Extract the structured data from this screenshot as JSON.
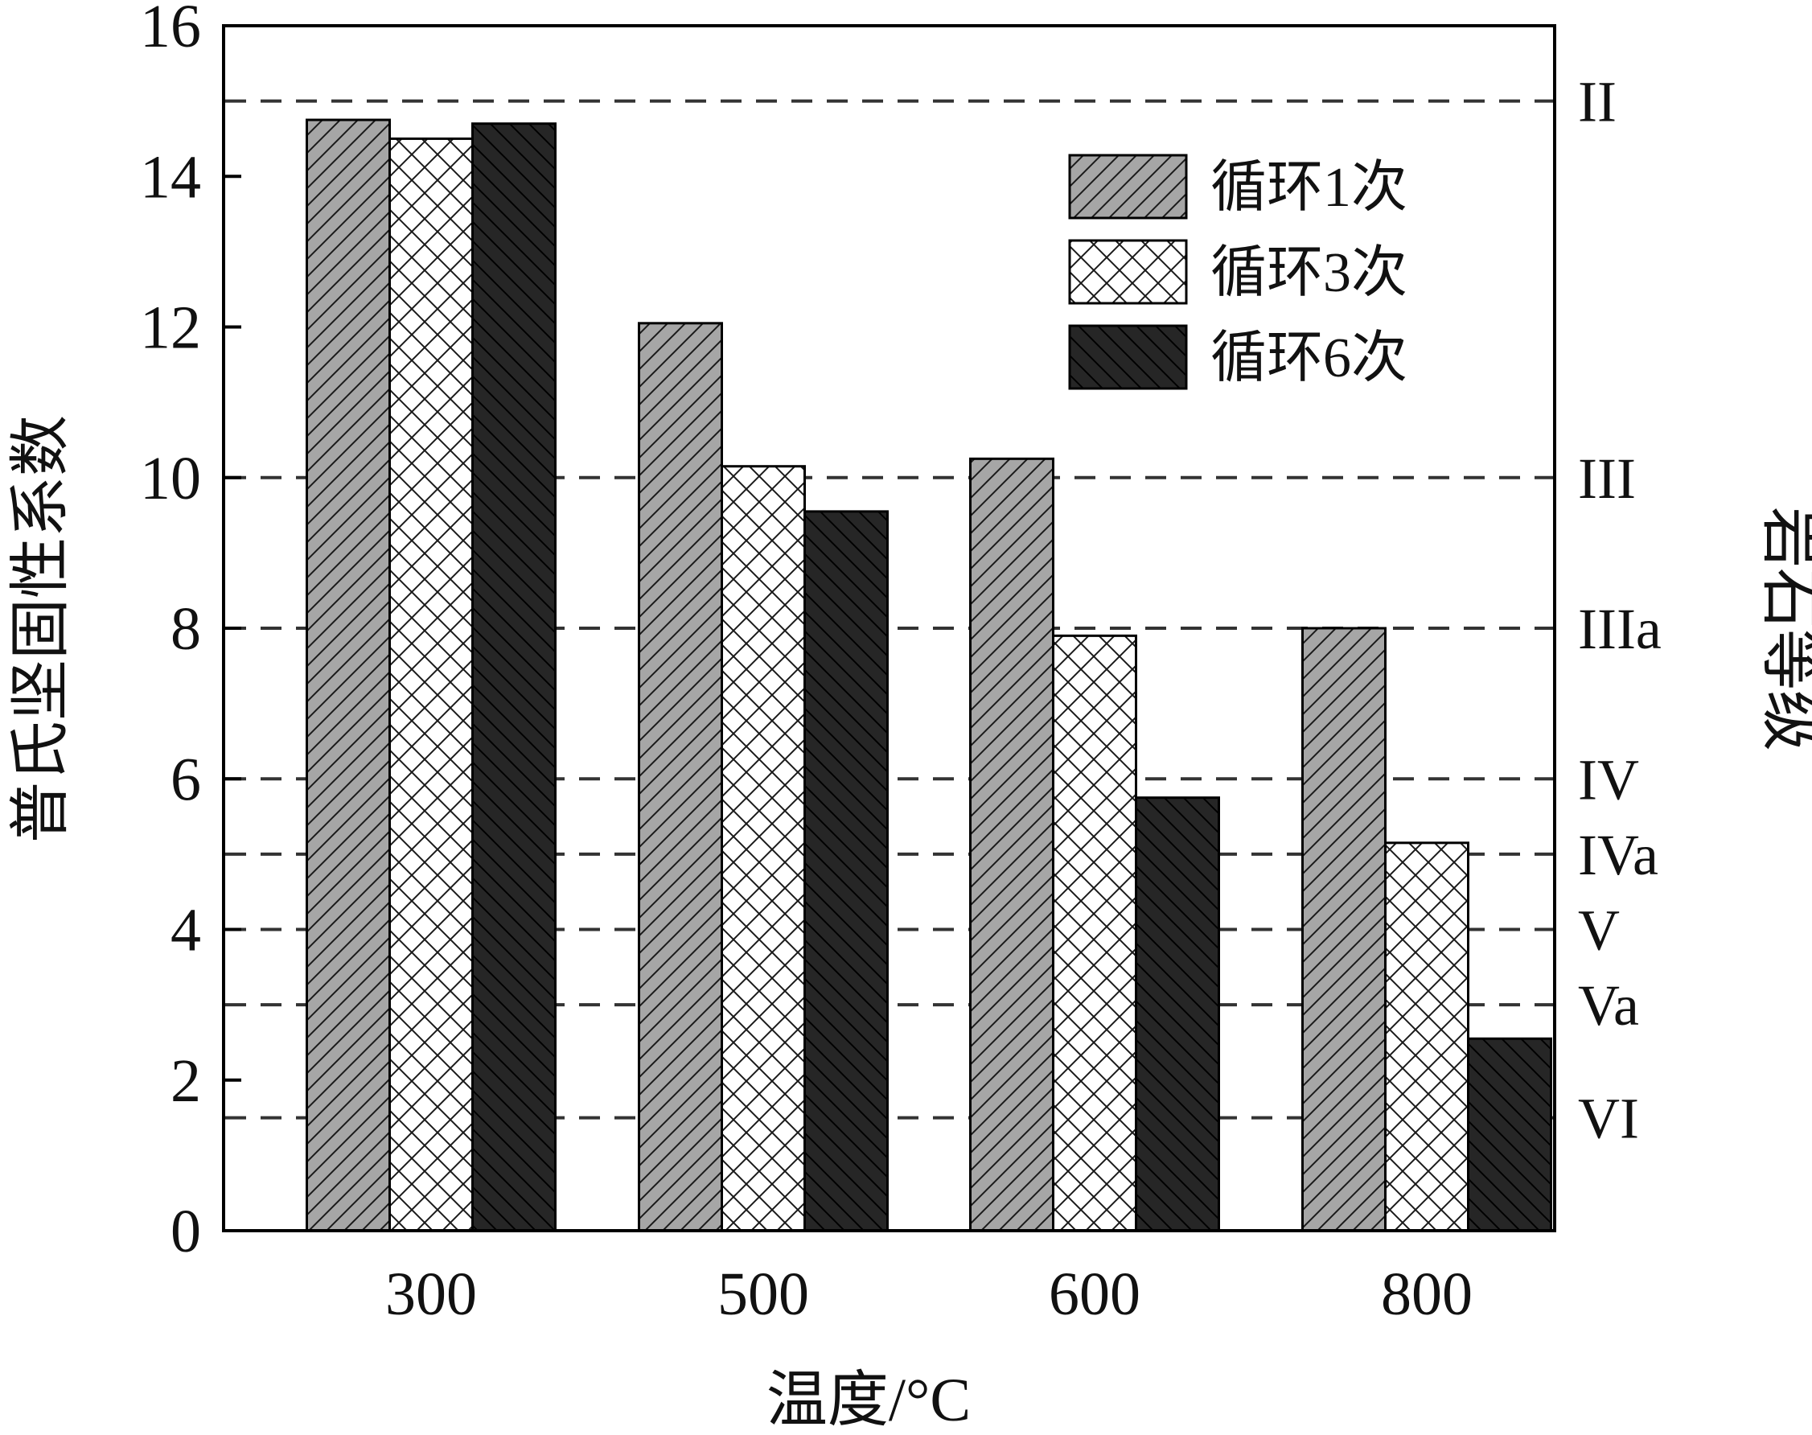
{
  "chart_data": {
    "type": "bar",
    "xlabel": "温度/°C",
    "ylabel": "普氏坚固性系数",
    "ylabel_right": "岩石等级",
    "categories": [
      "300",
      "500",
      "600",
      "800"
    ],
    "ylim": [
      0,
      16
    ],
    "yticks": [
      "0",
      "2",
      "4",
      "6",
      "8",
      "10",
      "12",
      "14",
      "16"
    ],
    "series": [
      {
        "name": "循环1次",
        "values": [
          14.75,
          12.05,
          10.25,
          8.0
        ],
        "pattern": "diag-up",
        "fill": "#a6a6a6"
      },
      {
        "name": "循环3次",
        "values": [
          14.5,
          10.15,
          7.9,
          5.15
        ],
        "pattern": "crosshatch",
        "fill": "#ffffff"
      },
      {
        "name": "循环6次",
        "values": [
          14.7,
          9.55,
          5.75,
          2.55
        ],
        "pattern": "diag-down",
        "fill": "#262626"
      }
    ],
    "reference_lines": [
      {
        "value": 15,
        "label": "II"
      },
      {
        "value": 10,
        "label": "III"
      },
      {
        "value": 8,
        "label": "IIIa"
      },
      {
        "value": 6,
        "label": "IV"
      },
      {
        "value": 5,
        "label": "IVa"
      },
      {
        "value": 4,
        "label": "V"
      },
      {
        "value": 3,
        "label": "Va"
      },
      {
        "value": 1.5,
        "label": "VI"
      }
    ],
    "legend_position": "top-right"
  }
}
